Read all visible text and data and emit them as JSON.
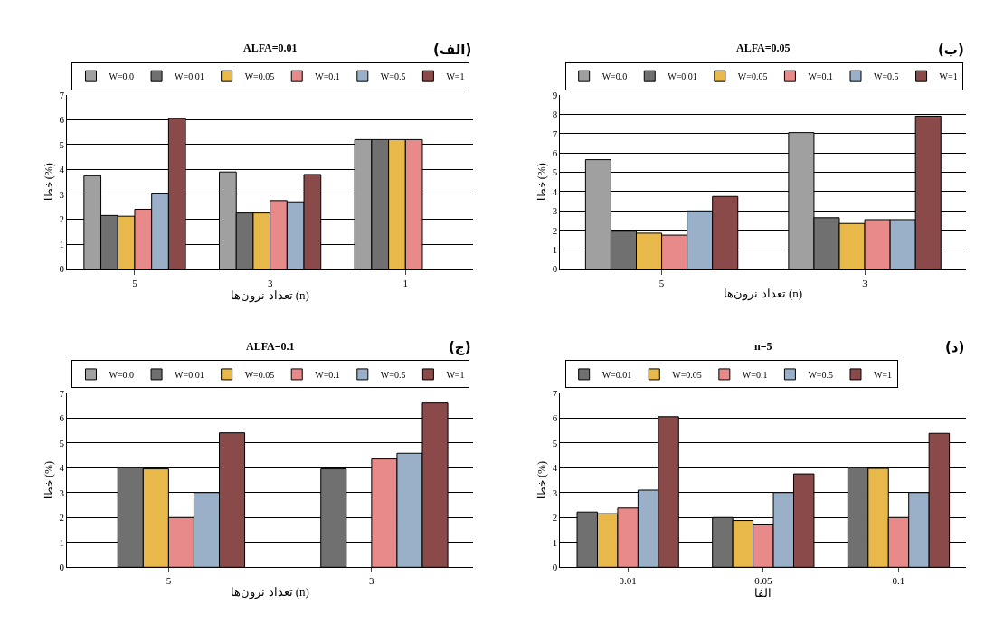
{
  "chart_data": [
    {
      "type": "bar",
      "title": "ALFA=0.01",
      "xlabel": "تعداد نرون‌ها (n)",
      "ylabel": "خطا (%)",
      "annotations": [
        "(الف)"
      ],
      "categories": [
        "5",
        "3",
        "1"
      ],
      "ylim": [
        0,
        7
      ],
      "yticks": [
        0,
        1,
        2,
        3,
        4,
        5,
        6,
        7
      ],
      "grid": "y",
      "legend": "top",
      "series": [
        {
          "name": "W=0.0",
          "color": "#a0a0a0",
          "values": [
            3.75,
            3.9,
            5.2
          ]
        },
        {
          "name": "W=0.01",
          "color": "#707070",
          "values": [
            2.15,
            2.25,
            5.2
          ]
        },
        {
          "name": "W=0.05",
          "color": "#e8b84a",
          "values": [
            2.12,
            2.25,
            5.2
          ]
        },
        {
          "name": "W=0.1",
          "color": "#e88a8a",
          "values": [
            2.4,
            2.75,
            5.2
          ]
        },
        {
          "name": "W=0.5",
          "color": "#9ab0c8",
          "values": [
            3.05,
            2.7,
            null
          ]
        },
        {
          "name": "W=1",
          "color": "#8b4a4a",
          "values": [
            6.05,
            3.8,
            null
          ]
        }
      ]
    },
    {
      "type": "bar",
      "title": "ALFA=0.05",
      "xlabel": "تعداد نرون‌ها (n)",
      "ylabel": "خطا (%)",
      "annotations": [
        "(ب)"
      ],
      "categories": [
        "5",
        "3"
      ],
      "ylim": [
        0,
        9
      ],
      "yticks": [
        0,
        1,
        2,
        3,
        4,
        5,
        6,
        7,
        8,
        9
      ],
      "grid": "y",
      "legend": "top",
      "series": [
        {
          "name": "W=0.0",
          "color": "#a0a0a0",
          "values": [
            5.65,
            7.05
          ]
        },
        {
          "name": "W=0.01",
          "color": "#707070",
          "values": [
            1.95,
            2.65
          ]
        },
        {
          "name": "W=0.05",
          "color": "#e8b84a",
          "values": [
            1.85,
            2.35
          ]
        },
        {
          "name": "W=0.1",
          "color": "#e88a8a",
          "values": [
            1.75,
            2.55
          ]
        },
        {
          "name": "W=0.5",
          "color": "#9ab0c8",
          "values": [
            3.0,
            2.55
          ]
        },
        {
          "name": "W=1",
          "color": "#8b4a4a",
          "values": [
            3.75,
            7.9
          ]
        }
      ]
    },
    {
      "type": "bar",
      "title": "ALFA=0.1",
      "xlabel": "تعداد نرون‌ها (n)",
      "ylabel": "خطا (%)",
      "annotations": [
        "(ج)"
      ],
      "categories": [
        "5",
        "3"
      ],
      "ylim": [
        0,
        7
      ],
      "yticks": [
        0,
        1,
        2,
        3,
        4,
        5,
        6,
        7
      ],
      "grid": "y",
      "legend": "top",
      "series": [
        {
          "name": "W=0.0",
          "color": "#a0a0a0",
          "values": [
            null,
            null
          ]
        },
        {
          "name": "W=0.01",
          "color": "#707070",
          "values": [
            4.0,
            3.95
          ]
        },
        {
          "name": "W=0.05",
          "color": "#e8b84a",
          "values": [
            3.95,
            null
          ]
        },
        {
          "name": "W=0.1",
          "color": "#e88a8a",
          "values": [
            2.0,
            4.35
          ]
        },
        {
          "name": "W=0.5",
          "color": "#9ab0c8",
          "values": [
            3.0,
            4.58
          ]
        },
        {
          "name": "W=1",
          "color": "#8b4a4a",
          "values": [
            5.4,
            6.6
          ]
        }
      ]
    },
    {
      "type": "bar",
      "title": "n=5",
      "xlabel": "الفا",
      "ylabel": "خطا (%)",
      "annotations": [
        "(د)"
      ],
      "categories": [
        "0.01",
        "0.05",
        "0.1"
      ],
      "ylim": [
        0,
        7
      ],
      "yticks": [
        0,
        1,
        2,
        3,
        4,
        5,
        6,
        7
      ],
      "grid": "y",
      "legend": "top",
      "series": [
        {
          "name": "W=0.01",
          "color": "#707070",
          "values": [
            2.22,
            2.0,
            4.0
          ]
        },
        {
          "name": "W=0.05",
          "color": "#e8b84a",
          "values": [
            2.15,
            1.88,
            3.97
          ]
        },
        {
          "name": "W=0.1",
          "color": "#e88a8a",
          "values": [
            2.38,
            1.7,
            2.0
          ]
        },
        {
          "name": "W=0.5",
          "color": "#9ab0c8",
          "values": [
            3.1,
            3.0,
            3.0
          ]
        },
        {
          "name": "W=1",
          "color": "#8b4a4a",
          "values": [
            6.05,
            3.75,
            5.38
          ]
        }
      ]
    }
  ]
}
